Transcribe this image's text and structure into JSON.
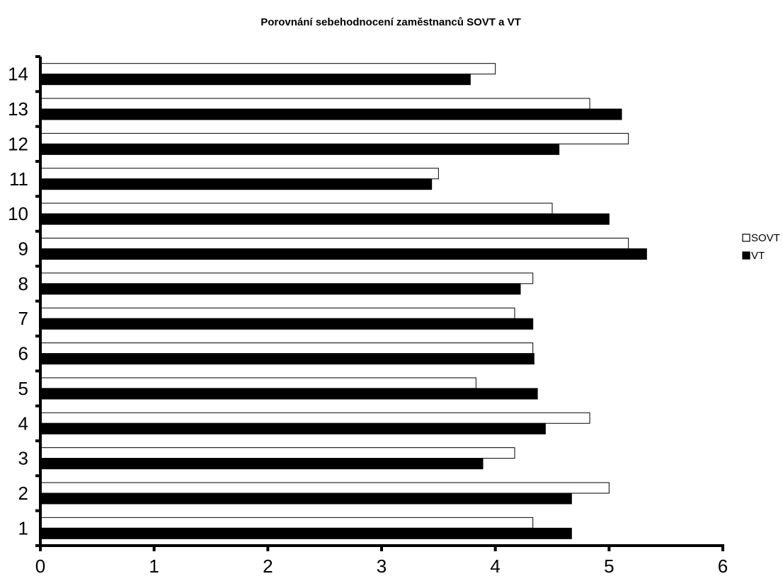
{
  "chart_data": {
    "type": "bar",
    "orientation": "horizontal",
    "title": "Porovnání sebehodnocení zaměstnanců SOVT a VT",
    "xlabel": "",
    "ylabel": "",
    "xlim": [
      0,
      6
    ],
    "x_ticks": [
      "0",
      "1",
      "2",
      "3",
      "4",
      "5",
      "6"
    ],
    "categories": [
      "1",
      "2",
      "3",
      "4",
      "5",
      "6",
      "7",
      "8",
      "9",
      "10",
      "11",
      "12",
      "13",
      "14"
    ],
    "series": [
      {
        "name": "SOVT",
        "color": "#ffffff",
        "values": [
          4.33,
          5.0,
          4.17,
          4.83,
          3.83,
          4.33,
          4.17,
          4.33,
          5.17,
          4.5,
          3.5,
          5.17,
          4.83,
          4.0
        ]
      },
      {
        "name": "VT",
        "color": "#000000",
        "values": [
          4.67,
          4.67,
          3.89,
          4.44,
          4.37,
          4.34,
          4.33,
          4.22,
          5.33,
          5.0,
          3.44,
          4.56,
          5.11,
          3.78
        ]
      }
    ],
    "grid": false,
    "legend": "right"
  }
}
